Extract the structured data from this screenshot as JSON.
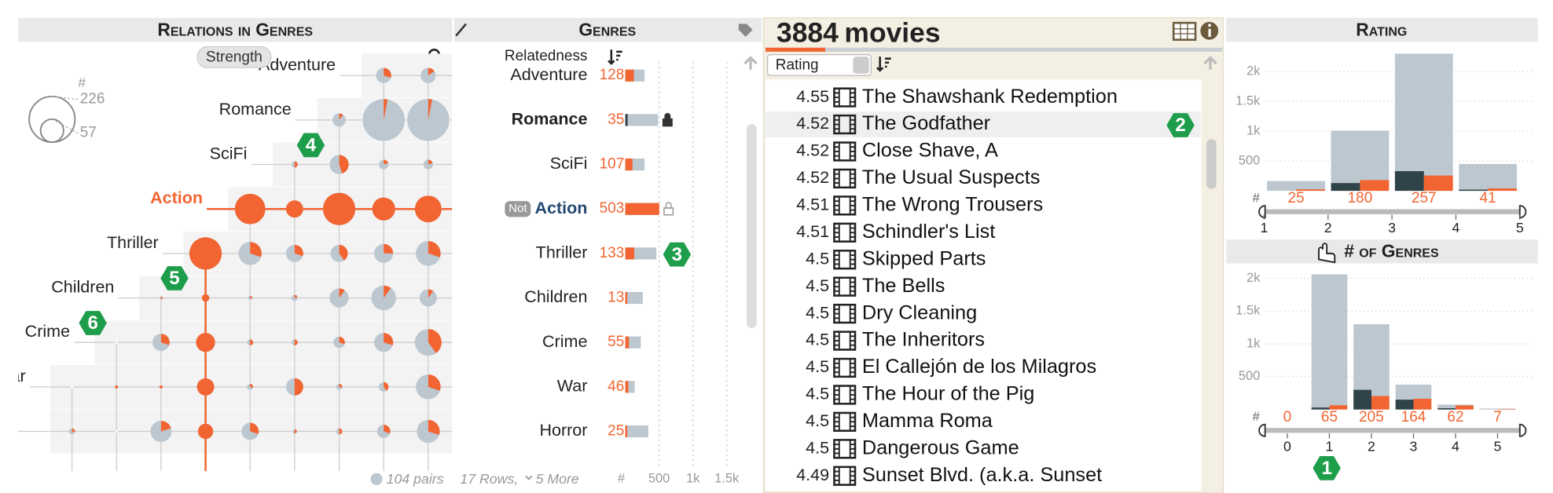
{
  "relations": {
    "title": "Relations in Genres",
    "mode": "Strength",
    "legend": {
      "symbol": "#",
      "large": 226,
      "small": 57
    },
    "rows": [
      "Adventure",
      "Romance",
      "SciFi",
      "Action",
      "Thriller",
      "Children",
      "Crime",
      "War",
      null
    ],
    "cells": [
      [
        null,
        null,
        null,
        null,
        null,
        null,
        null,
        25,
        25
      ],
      [
        null,
        null,
        null,
        null,
        null,
        null,
        19,
        190,
        190
      ],
      [
        null,
        null,
        null,
        null,
        null,
        4,
        39,
        10,
        10
      ],
      [
        null,
        null,
        null,
        null,
        100,
        32,
        113,
        57,
        77
      ],
      [
        null,
        null,
        null,
        113,
        57,
        32,
        32,
        39,
        66
      ],
      [
        null,
        null,
        1,
        6,
        2,
        4,
        39,
        66,
        32
      ],
      [
        null,
        null,
        32,
        39,
        4,
        4,
        14,
        39,
        77
      ],
      [
        null,
        1,
        1,
        32,
        4,
        32,
        4,
        10,
        66
      ],
      [
        4,
        null,
        48,
        25,
        32,
        2,
        4,
        19,
        57
      ]
    ],
    "shares": [
      [
        null,
        null,
        null,
        null,
        null,
        null,
        null,
        0.3,
        0.15
      ],
      [
        null,
        null,
        null,
        null,
        null,
        null,
        0.1,
        0.03,
        0.03
      ],
      [
        null,
        null,
        null,
        null,
        null,
        0.5,
        0.45,
        0.2,
        0.2
      ],
      [
        null,
        null,
        null,
        null,
        1,
        1,
        1,
        1,
        1
      ],
      [
        null,
        null,
        null,
        1,
        0.3,
        0.3,
        0.4,
        0.25,
        0.3
      ],
      [
        null,
        null,
        0.5,
        1,
        0.3,
        0.2,
        0.1,
        0.1,
        0.1
      ],
      [
        null,
        null,
        0.3,
        1,
        0.5,
        0.5,
        0.3,
        0.3,
        0.4
      ],
      [
        null,
        1,
        1,
        1,
        0.3,
        0.5,
        0.3,
        0.4,
        0.3
      ],
      [
        0.3,
        null,
        0.2,
        1,
        0.3,
        0.5,
        0.5,
        0.3,
        0.3
      ]
    ],
    "footer": "104 pairs"
  },
  "genres": {
    "title": "Genres",
    "sort_by": "Relatedness",
    "not_label": "Not",
    "items": [
      {
        "name": "Adventure",
        "count": 128,
        "total": 285
      },
      {
        "name": "Romance",
        "count": 35,
        "total": 485,
        "state": "selected"
      },
      {
        "name": "SciFi",
        "count": 107,
        "total": 285
      },
      {
        "name": "Action",
        "count": 503,
        "total": 500,
        "state": "excluded"
      },
      {
        "name": "Thriller",
        "count": 133,
        "total": 460
      },
      {
        "name": "Children",
        "count": 13,
        "total": 260
      },
      {
        "name": "Crime",
        "count": 55,
        "total": 230
      },
      {
        "name": "War",
        "count": 46,
        "total": 140
      },
      {
        "name": "Horror",
        "count": 25,
        "total": 340
      }
    ],
    "footer_rows": "17 Rows,",
    "footer_more": "5 More",
    "axis_symbol": "#",
    "xlim": [
      0,
      1720
    ],
    "ticks": [
      500,
      {
        "value": 1000,
        "label": "1k"
      },
      {
        "value": 1500,
        "label": "1.5k"
      }
    ]
  },
  "movies": {
    "count": 3884,
    "label": "movies",
    "sort_by": "Rating",
    "items": [
      {
        "rating": 4.55,
        "title": "The Shawshank Redemption"
      },
      {
        "rating": 4.52,
        "title": "The Godfather"
      },
      {
        "rating": 4.52,
        "title": "Close Shave, A"
      },
      {
        "rating": 4.52,
        "title": "The Usual Suspects"
      },
      {
        "rating": 4.51,
        "title": "The Wrong Trousers"
      },
      {
        "rating": 4.51,
        "title": "Schindler's List"
      },
      {
        "rating": 4.5,
        "title": "Skipped Parts"
      },
      {
        "rating": 4.5,
        "title": "The Bells"
      },
      {
        "rating": 4.5,
        "title": "Dry Cleaning"
      },
      {
        "rating": 4.5,
        "title": "The Inheritors"
      },
      {
        "rating": 4.5,
        "title": "El Callejón de los Milagros"
      },
      {
        "rating": 4.5,
        "title": "The Hour of the Pig"
      },
      {
        "rating": 4.5,
        "title": "Mamma Roma"
      },
      {
        "rating": 4.5,
        "title": "Dangerous Game"
      },
      {
        "rating": 4.49,
        "title": "Sunset Blvd. (a.k.a. Sunset"
      }
    ]
  },
  "rating": {
    "title": "Rating",
    "symbol": "#",
    "bins": [
      1,
      2,
      3,
      4,
      5
    ],
    "total": [
      165,
      1010,
      2300,
      450
    ],
    "highlight": [
      0,
      130,
      330,
      20
    ],
    "selected": [
      25,
      180,
      257,
      41
    ],
    "xlim": [
      1,
      5
    ],
    "xticks": [
      1,
      2,
      3,
      4,
      5
    ],
    "ylim": [
      0,
      2350
    ],
    "yticks": [
      500,
      {
        "value": 1000,
        "label": "1k"
      },
      {
        "value": 1500,
        "label": "1.5k"
      },
      {
        "value": 2000,
        "label": "2k"
      }
    ]
  },
  "genre_count": {
    "title": "# of Genres",
    "symbol": "#",
    "x": [
      0,
      1,
      2,
      3,
      4,
      5
    ],
    "total": [
      0,
      2060,
      1300,
      380,
      75,
      15
    ],
    "highlight": [
      0,
      30,
      300,
      150,
      20,
      0
    ],
    "selected": [
      0,
      65,
      205,
      164,
      62,
      7
    ],
    "xlim": [
      -0.6,
      5.6
    ],
    "xticks": [
      0,
      1,
      2,
      3,
      4,
      5
    ],
    "ylim": [
      0,
      2120
    ],
    "yticks": [
      500,
      {
        "value": 1000,
        "label": "1k"
      },
      {
        "value": 1500,
        "label": "1.5k"
      },
      {
        "value": 2000,
        "label": "2k"
      }
    ]
  },
  "badges": [
    1,
    2,
    3,
    4,
    5,
    6
  ]
}
